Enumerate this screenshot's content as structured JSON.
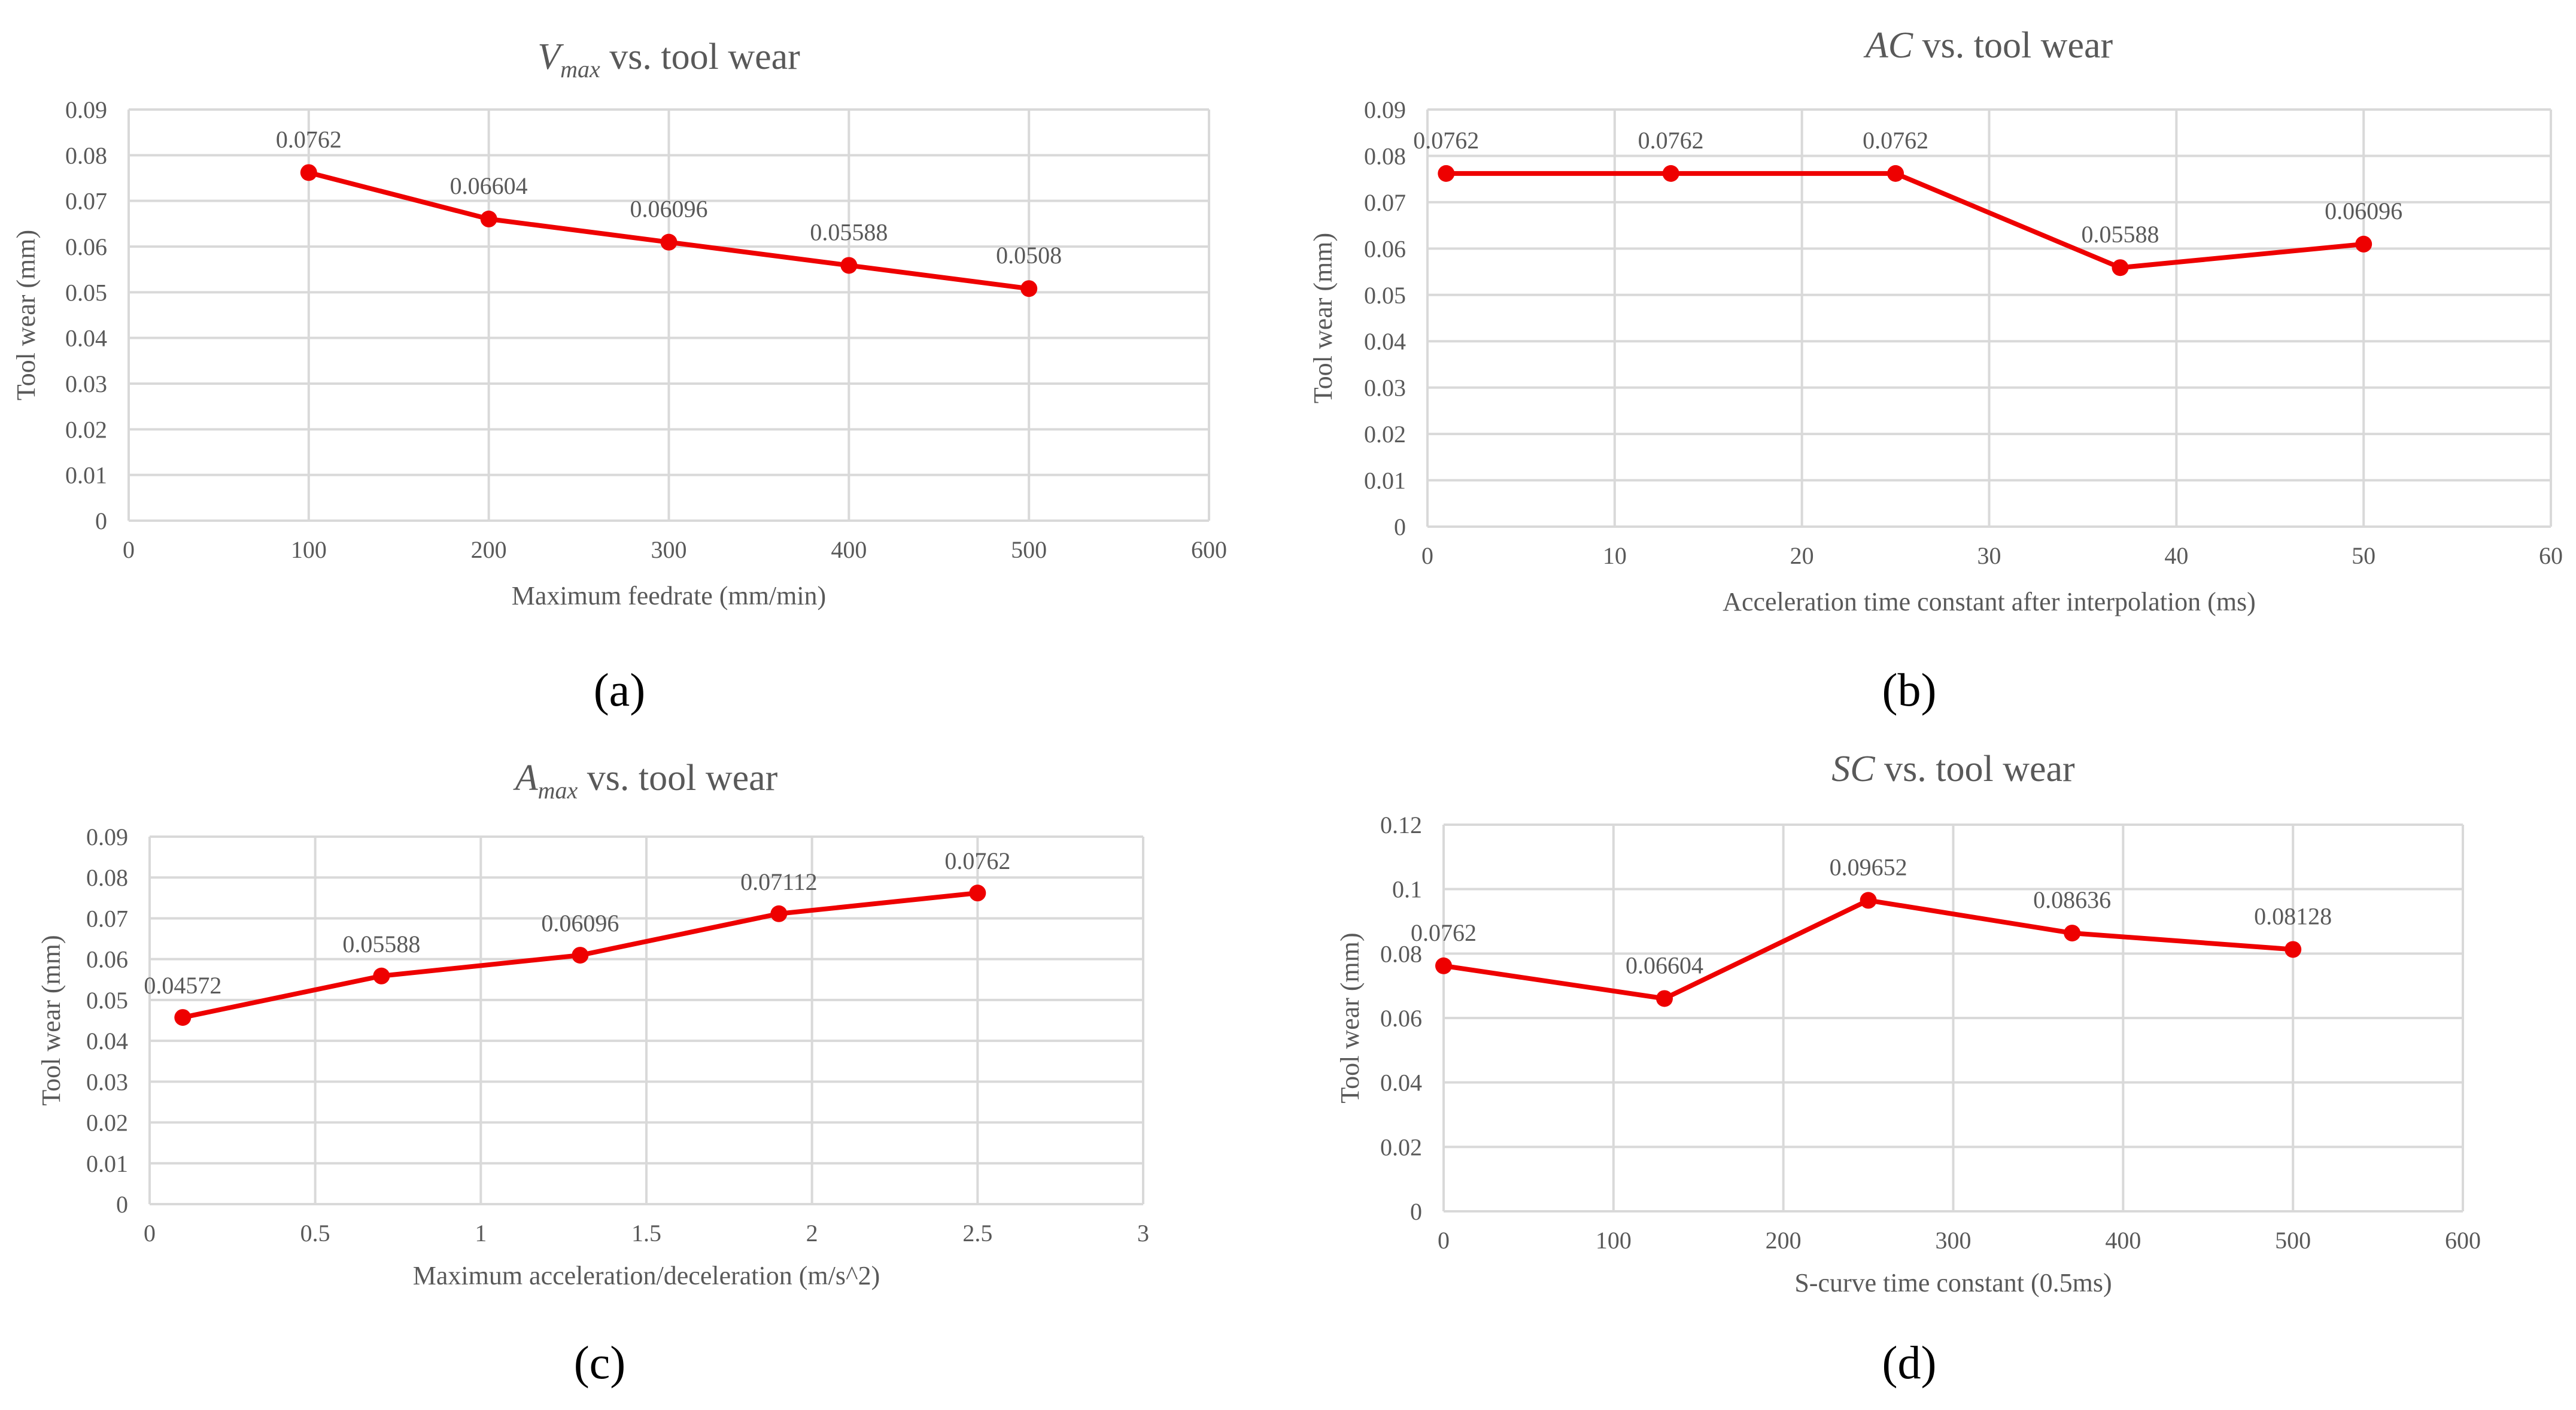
{
  "colors": {
    "series": "#ee0000",
    "grid": "#d9d9d9",
    "axis_text": "#595959",
    "title_text": "#595959",
    "panel_label": "#000000"
  },
  "panel_labels": [
    "(a)",
    "(b)",
    "(c)",
    "(d)"
  ],
  "chart_data": [
    {
      "type": "line",
      "panel": "(a)",
      "title_var": "V",
      "title_sub": "max",
      "title_rest": " vs. tool wear",
      "title": "Vmax vs. tool wear",
      "xlabel": "Maximum  feedrate (mm/min)",
      "ylabel": "Tool wear (mm)",
      "xlim": [
        0,
        600
      ],
      "ylim": [
        0,
        0.09
      ],
      "xticks": [
        0,
        100,
        200,
        300,
        400,
        500,
        600
      ],
      "yticks": [
        0,
        0.01,
        0.02,
        0.03,
        0.04,
        0.05,
        0.06,
        0.07,
        0.08,
        0.09
      ],
      "xtick_labels": [
        "0",
        "100",
        "200",
        "300",
        "400",
        "500",
        "600"
      ],
      "ytick_labels": [
        "0",
        "0.01",
        "0.02",
        "0.03",
        "0.04",
        "0.05",
        "0.06",
        "0.07",
        "0.08",
        "0.09"
      ],
      "grid": true,
      "x": [
        100,
        200,
        300,
        400,
        500
      ],
      "y": [
        0.0762,
        0.06604,
        0.06096,
        0.05588,
        0.0508
      ],
      "data_labels": [
        "0.0762",
        "0.06604",
        "0.06096",
        "0.05588",
        "0.0508"
      ]
    },
    {
      "type": "line",
      "panel": "(b)",
      "title_var": "AC",
      "title_sub": "",
      "title_rest": " vs. tool wear",
      "title": "AC vs. tool wear",
      "xlabel": "Acceleration time  constant after interpolation (ms)",
      "ylabel": "Tool wear (mm)",
      "xlim": [
        0,
        60
      ],
      "ylim": [
        0,
        0.09
      ],
      "xticks": [
        0,
        10,
        20,
        30,
        40,
        50,
        60
      ],
      "yticks": [
        0,
        0.01,
        0.02,
        0.03,
        0.04,
        0.05,
        0.06,
        0.07,
        0.08,
        0.09
      ],
      "xtick_labels": [
        "0",
        "10",
        "20",
        "30",
        "40",
        "50",
        "60"
      ],
      "ytick_labels": [
        "0",
        "0.01",
        "0.02",
        "0.03",
        "0.04",
        "0.05",
        "0.06",
        "0.07",
        "0.08",
        "0.09"
      ],
      "grid": true,
      "x": [
        1,
        13,
        25,
        37,
        50
      ],
      "y": [
        0.0762,
        0.0762,
        0.0762,
        0.05588,
        0.06096
      ],
      "data_labels": [
        "0.0762",
        "0.0762",
        "0.0762",
        "0.05588",
        "0.06096"
      ]
    },
    {
      "type": "line",
      "panel": "(c)",
      "title_var": "A",
      "title_sub": "max",
      "title_rest": " vs. tool wear",
      "title": "Amax vs. tool wear",
      "xlabel": "Maximum  acceleration/deceleration (m/s^2)",
      "ylabel": "Tool wear (mm)",
      "xlim": [
        0,
        3
      ],
      "ylim": [
        0,
        0.09
      ],
      "xticks": [
        0,
        0.5,
        1,
        1.5,
        2,
        2.5,
        3
      ],
      "yticks": [
        0,
        0.01,
        0.02,
        0.03,
        0.04,
        0.05,
        0.06,
        0.07,
        0.08,
        0.09
      ],
      "xtick_labels": [
        "0",
        "0.5",
        "1",
        "1.5",
        "2",
        "2.5",
        "3"
      ],
      "ytick_labels": [
        "0",
        "0.01",
        "0.02",
        "0.03",
        "0.04",
        "0.05",
        "0.06",
        "0.07",
        "0.08",
        "0.09"
      ],
      "grid": true,
      "x": [
        0.1,
        0.7,
        1.3,
        1.9,
        2.5
      ],
      "y": [
        0.04572,
        0.05588,
        0.06096,
        0.07112,
        0.0762
      ],
      "data_labels": [
        "0.04572",
        "0.05588",
        "0.06096",
        "0.07112",
        "0.0762"
      ]
    },
    {
      "type": "line",
      "panel": "(d)",
      "title_var": "SC",
      "title_sub": "",
      "title_rest": " vs. tool wear",
      "title": "SC vs. tool wear",
      "xlabel": "S-curve time constant (0.5ms)",
      "ylabel": "Tool wear (mm)",
      "xlim": [
        0,
        600
      ],
      "ylim": [
        0,
        0.12
      ],
      "xticks": [
        0,
        100,
        200,
        300,
        400,
        500,
        600
      ],
      "yticks": [
        0,
        0.02,
        0.04,
        0.06,
        0.08,
        0.1,
        0.12
      ],
      "xtick_labels": [
        "0",
        "100",
        "200",
        "300",
        "400",
        "500",
        "600"
      ],
      "ytick_labels": [
        "0",
        "0.02",
        "0.04",
        "0.06",
        "0.08",
        "0.1",
        "0.12"
      ],
      "grid": true,
      "x": [
        0,
        130,
        250,
        370,
        500
      ],
      "y": [
        0.0762,
        0.06604,
        0.09652,
        0.08636,
        0.08128
      ],
      "data_labels": [
        "0.0762",
        "0.06604",
        "0.09652",
        "0.08636",
        "0.08128"
      ]
    }
  ]
}
